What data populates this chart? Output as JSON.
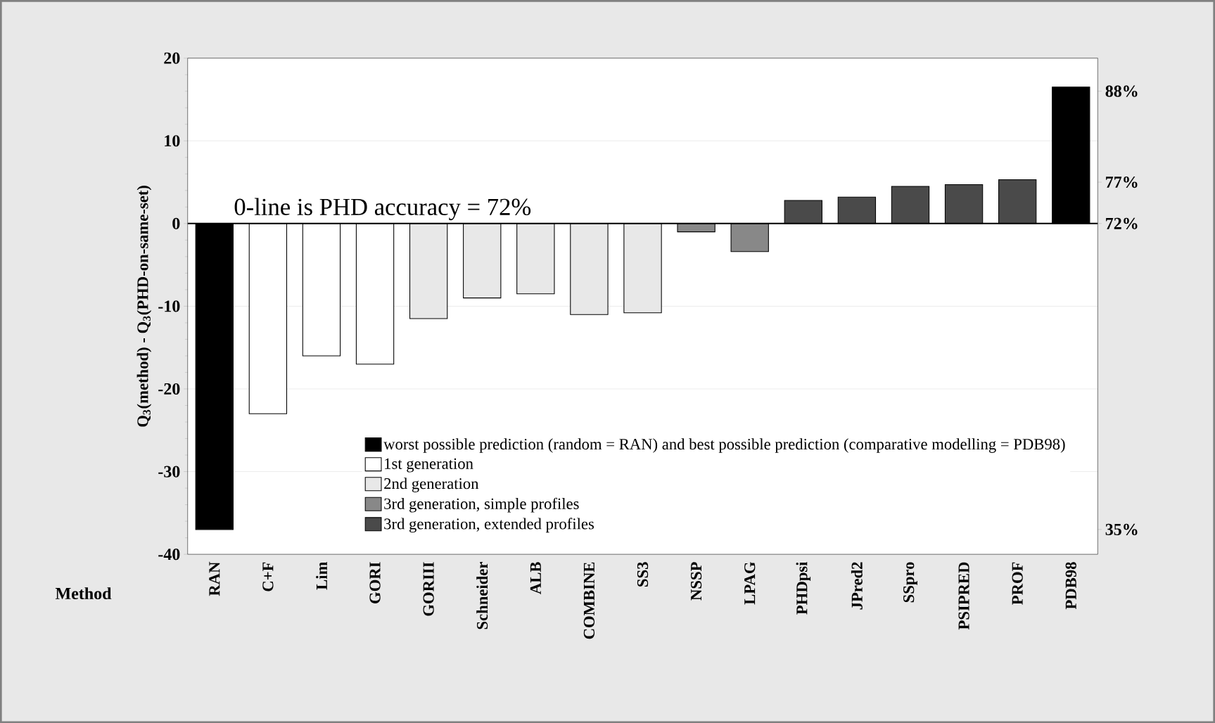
{
  "chart_data": {
    "type": "bar",
    "xlabel": "Method",
    "ylabel": "Q$_{3}$(method) - Q$_{3}$(PHD-on-same-set)",
    "categories": [
      "RAN",
      "C+F",
      "Lim",
      "GORI",
      "GORIII",
      "Schneider",
      "ALB",
      "COMBINE",
      "SS3",
      "NSSP",
      "LPAG",
      "PHDpsi",
      "JPred2",
      "SSpro",
      "PSIPRED",
      "PROF",
      "PDB98"
    ],
    "series": [
      {
        "name": "worst possible prediction (random = RAN) and best possible prediction (comparative modelling = PDB98)",
        "color": "#000000",
        "values": [
          -37,
          null,
          null,
          null,
          null,
          null,
          null,
          null,
          null,
          null,
          null,
          null,
          null,
          null,
          null,
          null,
          16.5
        ]
      },
      {
        "name": "1st generation",
        "color": "#ffffff",
        "values": [
          null,
          -23,
          -16,
          -17,
          null,
          null,
          null,
          null,
          null,
          null,
          null,
          null,
          null,
          null,
          null,
          null,
          null
        ]
      },
      {
        "name": "2nd generation",
        "color": "#e8e8e8",
        "values": [
          null,
          null,
          null,
          null,
          -11.5,
          -9,
          -8.5,
          -11,
          -10.8,
          null,
          null,
          null,
          null,
          null,
          null,
          null,
          null
        ]
      },
      {
        "name": "3rd generation, simple profiles",
        "color": "#888888",
        "values": [
          null,
          null,
          null,
          null,
          null,
          null,
          null,
          null,
          null,
          -1,
          -3.4,
          null,
          null,
          null,
          null,
          null,
          null
        ]
      },
      {
        "name": "3rd generation, extended profiles",
        "color": "#4a4a4a",
        "values": [
          null,
          null,
          null,
          null,
          null,
          null,
          null,
          null,
          null,
          null,
          null,
          2.8,
          3.2,
          4.5,
          4.7,
          5.3,
          null
        ]
      }
    ],
    "ylim": [
      -40,
      20
    ],
    "yticks": [
      -40,
      -30,
      -20,
      -10,
      0,
      10,
      20
    ],
    "y2lim": [
      32,
      92
    ],
    "y2ticks": [
      {
        "value": 35,
        "label": "35%"
      },
      {
        "value": 72,
        "label": "72%"
      },
      {
        "value": 77,
        "label": "77%"
      },
      {
        "value": 88,
        "label": "88%"
      }
    ],
    "ref_lines": [
      {
        "axis": "y",
        "value": 0,
        "label": "0-line is PHD accuracy = 72%"
      }
    ],
    "grid": "y",
    "legend": "bottom right"
  }
}
